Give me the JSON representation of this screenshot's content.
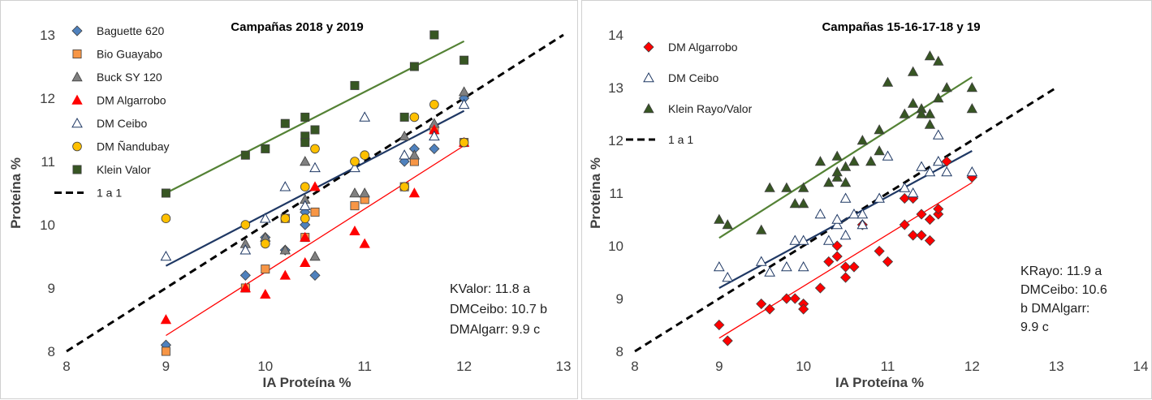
{
  "chart_data": [
    {
      "type": "scatter",
      "title": "Campañas 2018 y 2019",
      "xlabel": "IA Proteína %",
      "ylabel": "Proteína %",
      "xlim": [
        8,
        13
      ],
      "ylim": [
        8,
        13
      ],
      "xticks": [
        "8",
        "9",
        "10",
        "11",
        "12",
        "13"
      ],
      "yticks": [
        "8",
        "9",
        "10",
        "11",
        "12",
        "13"
      ],
      "legend_position": "top-left",
      "stats": [
        "KValor: 11.8 a",
        "DMCeibo: 10.7 b",
        "DMAlgarr: 9.9 c"
      ],
      "series": [
        {
          "name": "Baguette 620",
          "marker": "diamond",
          "color": "#4f81bd",
          "x": [
            9,
            9.8,
            10,
            10.2,
            10.4,
            10.4,
            10.5,
            11.4,
            11.5,
            11.7,
            12
          ],
          "y": [
            8.1,
            9.2,
            9.8,
            9.6,
            10.2,
            10.0,
            9.2,
            11.0,
            11.2,
            11.2,
            12.0
          ]
        },
        {
          "name": "Bio Guayabo",
          "marker": "square",
          "color": "#f79646",
          "x": [
            9,
            9.8,
            10,
            10.2,
            10.4,
            10.5,
            10.9,
            11,
            11.4,
            11.5,
            11.7,
            12
          ],
          "y": [
            8.0,
            9.0,
            9.3,
            10.1,
            9.8,
            10.2,
            10.3,
            10.4,
            10.6,
            11.0,
            11.5,
            11.3
          ]
        },
        {
          "name": "Buck SY 120",
          "marker": "triangle",
          "color": "#808080",
          "x": [
            9.8,
            10,
            10.2,
            10.4,
            10.4,
            10.5,
            10.9,
            11,
            11.4,
            11.5,
            11.7,
            12
          ],
          "y": [
            9.7,
            9.8,
            9.6,
            11.0,
            10.4,
            9.5,
            10.5,
            10.5,
            11.4,
            11.1,
            11.6,
            12.1
          ]
        },
        {
          "name": "DM Algarrobo",
          "marker": "triangle",
          "color": "#ff0000",
          "x": [
            9,
            9.8,
            10,
            10.2,
            10.4,
            10.4,
            10.5,
            10.9,
            11,
            11.5,
            11.7,
            12
          ],
          "y": [
            8.5,
            9.0,
            8.9,
            9.2,
            9.4,
            9.8,
            10.6,
            9.9,
            9.7,
            10.5,
            11.5,
            11.3
          ]
        },
        {
          "name": "DM Ceibo",
          "marker": "triangle-open",
          "color": "#1f3864",
          "x": [
            9,
            9.8,
            10,
            10.2,
            10.4,
            10.5,
            10.9,
            11,
            11.4,
            11.7,
            12
          ],
          "y": [
            9.5,
            9.6,
            10.1,
            10.6,
            10.3,
            10.9,
            10.9,
            11.7,
            11.1,
            11.4,
            11.9
          ]
        },
        {
          "name": "DM Ñandubay",
          "marker": "circle",
          "color": "#ffc000",
          "x": [
            9,
            9.8,
            10,
            10.2,
            10.4,
            10.4,
            10.5,
            10.9,
            11,
            11.4,
            11.5,
            11.7,
            12
          ],
          "y": [
            10.1,
            10.0,
            9.7,
            10.1,
            10.1,
            10.6,
            11.2,
            11.0,
            11.1,
            10.6,
            11.7,
            11.9,
            11.3
          ]
        },
        {
          "name": "Klein Valor",
          "marker": "square",
          "color": "#375623",
          "x": [
            9,
            9.8,
            10,
            10.2,
            10.4,
            10.4,
            10.4,
            10.5,
            10.9,
            11.4,
            11.5,
            11.7,
            12
          ],
          "y": [
            10.5,
            11.1,
            11.2,
            11.6,
            11.7,
            11.4,
            11.3,
            11.5,
            12.2,
            11.7,
            12.5,
            13.0,
            12.6
          ]
        }
      ],
      "trendlines": [
        {
          "series": "Klein Valor",
          "color": "#548235",
          "x": [
            9,
            12
          ],
          "y": [
            10.5,
            12.9
          ]
        },
        {
          "series": "DM Ceibo",
          "color": "#1f3864",
          "x": [
            9,
            12
          ],
          "y": [
            9.35,
            11.8
          ]
        },
        {
          "series": "DM Algarrobo",
          "color": "#ff0000",
          "x": [
            9,
            12
          ],
          "y": [
            8.25,
            11.25
          ]
        }
      ],
      "reference_line": {
        "name": "1 a 1",
        "x": [
          8,
          13
        ],
        "y": [
          8,
          13
        ],
        "style": "dashed",
        "color": "#000000"
      }
    },
    {
      "type": "scatter",
      "title": "Campañas 15-16-17-18 y 19",
      "xlabel": "IA Proteína %",
      "ylabel": "Proteína %",
      "xlim": [
        8,
        14
      ],
      "ylim": [
        8,
        14
      ],
      "xticks": [
        "8",
        "9",
        "10",
        "11",
        "12",
        "13",
        "14"
      ],
      "yticks": [
        "8",
        "9",
        "10",
        "11",
        "12",
        "13",
        "14"
      ],
      "legend_position": "top-left",
      "stats": [
        "KRayo: 11.9 a",
        "DMCeibo: 10.6",
        "b DMAlgarr:",
        "9.9 c"
      ],
      "series": [
        {
          "name": "DM Algarrobo",
          "marker": "diamond",
          "color": "#ff0000",
          "x": [
            9,
            9.1,
            9.5,
            9.6,
            9.8,
            9.9,
            10,
            10,
            10.2,
            10.3,
            10.4,
            10.4,
            10.5,
            10.5,
            10.6,
            10.7,
            10.9,
            11,
            11.2,
            11.2,
            11.3,
            11.3,
            11.4,
            11.4,
            11.5,
            11.5,
            11.6,
            11.6,
            11.7,
            12
          ],
          "y": [
            8.5,
            8.2,
            8.9,
            8.8,
            9.0,
            9.0,
            8.9,
            8.8,
            9.2,
            9.7,
            9.8,
            10.0,
            9.4,
            9.6,
            9.6,
            10.4,
            9.9,
            9.7,
            10.4,
            10.9,
            10.2,
            10.9,
            10.2,
            10.6,
            10.5,
            10.1,
            10.6,
            10.7,
            11.6,
            11.3
          ]
        },
        {
          "name": "DM Ceibo",
          "marker": "triangle-open",
          "color": "#1f3864",
          "x": [
            9,
            9.1,
            9.5,
            9.6,
            9.8,
            9.9,
            10,
            10,
            10.2,
            10.3,
            10.4,
            10.4,
            10.5,
            10.5,
            10.6,
            10.7,
            10.7,
            10.9,
            11,
            11.2,
            11.3,
            11.4,
            11.5,
            11.6,
            11.6,
            11.7,
            12
          ],
          "y": [
            9.6,
            9.4,
            9.7,
            9.5,
            9.6,
            10.1,
            10.1,
            9.6,
            10.6,
            10.1,
            10.4,
            10.5,
            10.2,
            10.9,
            10.6,
            10.4,
            10.6,
            10.9,
            11.7,
            11.1,
            11.0,
            11.5,
            11.4,
            11.6,
            12.1,
            11.4,
            11.4
          ]
        },
        {
          "name": "Klein Rayo/Valor",
          "marker": "triangle",
          "color": "#375623",
          "x": [
            9,
            9.1,
            9.5,
            9.6,
            9.8,
            9.9,
            10,
            10,
            10.2,
            10.3,
            10.4,
            10.4,
            10.4,
            10.5,
            10.5,
            10.6,
            10.7,
            10.8,
            10.9,
            10.9,
            11,
            11.2,
            11.3,
            11.3,
            11.4,
            11.4,
            11.5,
            11.5,
            11.5,
            11.6,
            11.6,
            11.7,
            12,
            12
          ],
          "y": [
            10.5,
            10.4,
            10.3,
            11.1,
            11.1,
            10.8,
            11.1,
            10.8,
            11.6,
            11.2,
            11.3,
            11.7,
            11.4,
            11.5,
            11.2,
            11.6,
            12.0,
            11.6,
            12.2,
            11.8,
            13.1,
            12.5,
            12.7,
            13.3,
            12.6,
            12.5,
            13.6,
            12.3,
            12.5,
            12.8,
            13.5,
            13.0,
            12.6,
            13.0
          ]
        }
      ],
      "trendlines": [
        {
          "series": "Klein Rayo/Valor",
          "color": "#548235",
          "x": [
            9,
            12
          ],
          "y": [
            10.15,
            13.2
          ]
        },
        {
          "series": "DM Ceibo",
          "color": "#1f3864",
          "x": [
            9,
            12
          ],
          "y": [
            9.2,
            11.8
          ]
        },
        {
          "series": "DM Algarrobo",
          "color": "#ff0000",
          "x": [
            9,
            12
          ],
          "y": [
            8.25,
            11.2
          ]
        }
      ],
      "reference_line": {
        "name": "1 a 1",
        "x": [
          8,
          13
        ],
        "y": [
          8,
          13
        ],
        "style": "dashed",
        "color": "#000000"
      }
    }
  ]
}
